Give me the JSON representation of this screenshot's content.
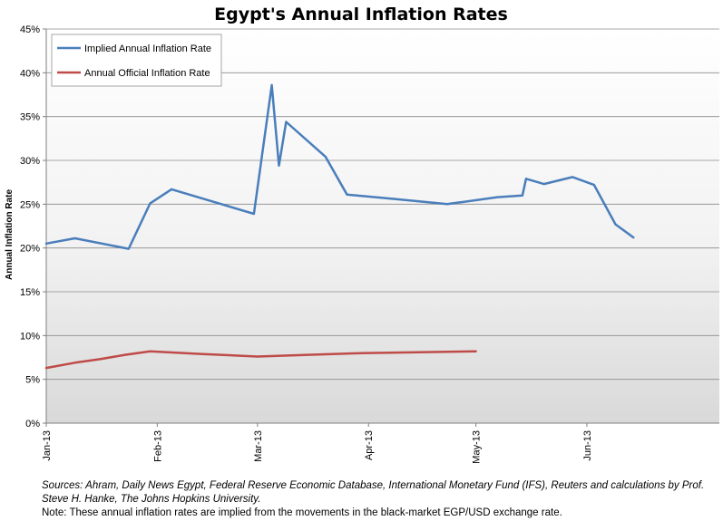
{
  "chart_data": {
    "type": "line",
    "title": "Egypt's Annual Inflation Rates",
    "xlabel": "",
    "ylabel": "Annual Inflation Rate",
    "ylim": [
      0,
      45
    ],
    "yticks": [
      "0%",
      "5%",
      "10%",
      "15%",
      "20%",
      "25%",
      "30%",
      "35%",
      "40%",
      "45%"
    ],
    "ytick_values": [
      0,
      5,
      10,
      15,
      20,
      25,
      30,
      35,
      40,
      45
    ],
    "xlim_days": [
      0,
      188
    ],
    "xticks": [
      "Jan-13",
      "Feb-13",
      "Mar-13",
      "Apr-13",
      "May-13",
      "Jun-13"
    ],
    "xtick_days": [
      0,
      31,
      59,
      90,
      120,
      151
    ],
    "legend_position": "top-left",
    "series": [
      {
        "name": "Implied Annual Inflation Rate",
        "color": "#4a7ebb",
        "x_days": [
          0,
          8,
          23,
          29,
          35,
          58,
          63,
          65,
          67,
          78,
          84,
          97,
          112,
          126,
          133,
          134,
          139,
          147,
          153,
          159,
          164
        ],
        "values": [
          20.5,
          21.1,
          19.9,
          25.1,
          26.7,
          23.9,
          38.6,
          29.4,
          34.4,
          30.4,
          26.1,
          25.6,
          25.0,
          25.8,
          26.0,
          27.9,
          27.3,
          28.1,
          27.2,
          22.7,
          21.2
        ]
      },
      {
        "name": "Annual Official Inflation Rate",
        "color": "#be4b48",
        "x_days": [
          0,
          8,
          15,
          22,
          29,
          43,
          59,
          73,
          88,
          104,
          120
        ],
        "values": [
          6.3,
          6.9,
          7.3,
          7.8,
          8.2,
          7.9,
          7.6,
          7.8,
          8.0,
          8.1,
          8.2
        ]
      }
    ]
  },
  "footer": {
    "sources": "Sources: Ahram, Daily News Egypt, Federal Reserve Economic Database, International Monetary Fund (IFS),  Reuters and calculations by Prof. Steve H. Hanke, The Johns Hopkins University.",
    "note": "Note: These annual inflation rates are implied from the movements in the  black-market EGP/USD exchange rate."
  }
}
